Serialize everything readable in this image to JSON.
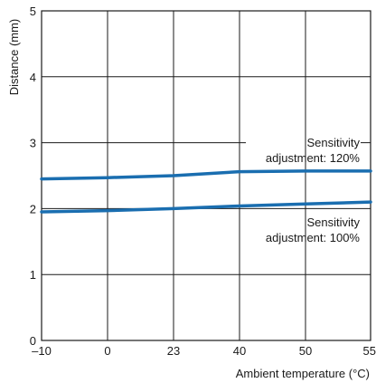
{
  "chart_data": {
    "type": "line",
    "xlabel": "Ambient temperature (°C)",
    "ylabel": "Distance (mm)",
    "x_ticks": [
      "–10",
      "0",
      "23",
      "40",
      "50",
      "55"
    ],
    "x_tick_values": [
      -10,
      0,
      23,
      40,
      50,
      55
    ],
    "y_ticks": [
      "0",
      "1",
      "2",
      "3",
      "4",
      "5"
    ],
    "y_tick_values": [
      0,
      1,
      2,
      3,
      4,
      5
    ],
    "ylim": [
      0,
      5
    ],
    "grid": true,
    "series": [
      {
        "name": "Sensitivity adjustment: 120%",
        "label_lines": [
          "Sensitivity",
          "adjustment: 120%"
        ],
        "color": "#1a6eb0",
        "x": [
          -10,
          0,
          23,
          40,
          50,
          55
        ],
        "y": [
          2.45,
          2.47,
          2.5,
          2.56,
          2.57,
          2.57
        ]
      },
      {
        "name": "Sensitivity adjustment: 100%",
        "label_lines": [
          "Sensitivity",
          "adjustment: 100%"
        ],
        "color": "#1a6eb0",
        "x": [
          -10,
          0,
          23,
          40,
          50,
          55
        ],
        "y": [
          1.95,
          1.97,
          2.0,
          2.04,
          2.07,
          2.1
        ]
      }
    ]
  }
}
